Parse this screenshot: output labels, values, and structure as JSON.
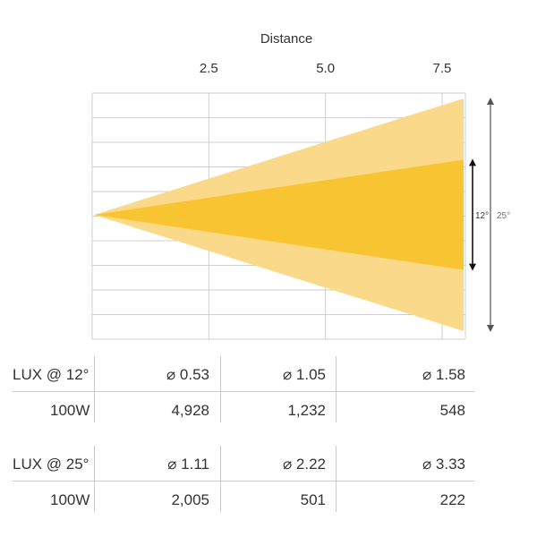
{
  "chart_data": {
    "type": "area",
    "title": "Distance",
    "x_ticks": [
      2.5,
      5.0,
      7.5
    ],
    "x_tick_labels": [
      "2.5",
      "5.0",
      "7.5"
    ],
    "xlim": [
      0,
      8
    ],
    "grid": true,
    "series": [
      {
        "name": "25°",
        "beam_angle_deg": 25,
        "color": "#fbd98a"
      },
      {
        "name": "12°",
        "beam_angle_deg": 12,
        "color": "#f9c431"
      }
    ],
    "annotations": [
      "12°",
      "25°"
    ]
  },
  "tables": [
    {
      "header_label": "LUX @ 12°",
      "diameters": [
        "⌀ 0.53",
        "⌀ 1.05",
        "⌀ 1.58"
      ],
      "row_label": "100W",
      "lux": [
        "4,928",
        "1,232",
        "548"
      ]
    },
    {
      "header_label": "LUX @ 25°",
      "diameters": [
        "⌀ 1.11",
        "⌀ 2.22",
        "⌀ 3.33"
      ],
      "row_label": "100W",
      "lux": [
        "2,005",
        "501",
        "222"
      ]
    }
  ]
}
